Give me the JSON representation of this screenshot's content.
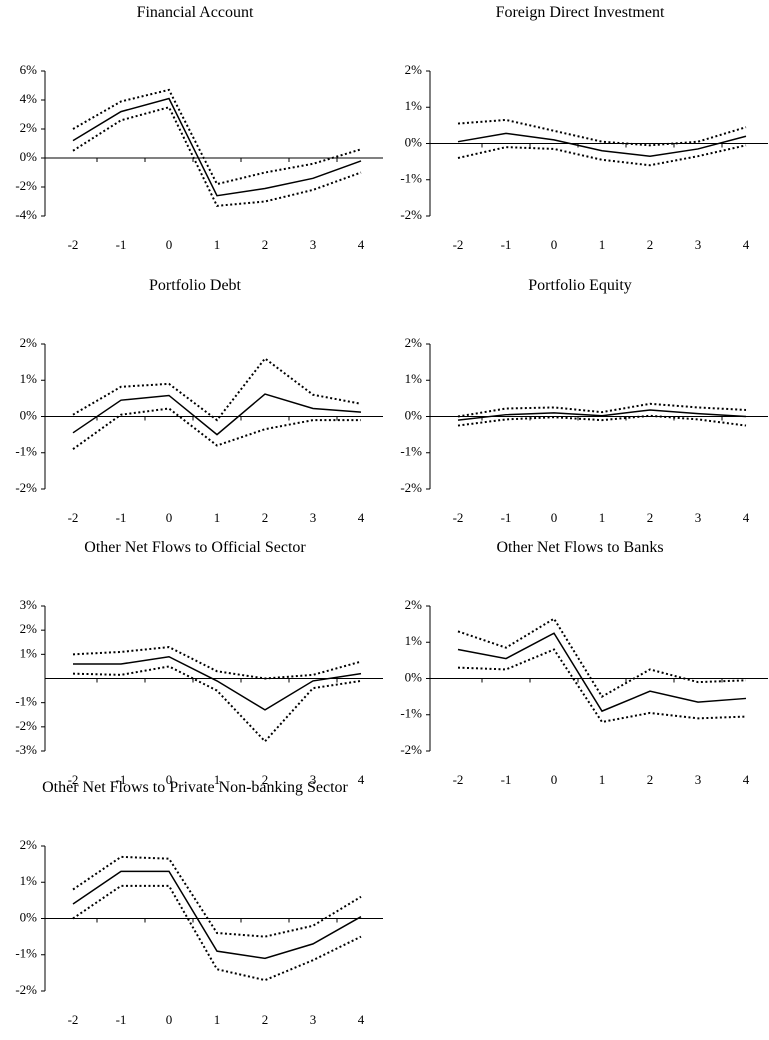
{
  "chart_data": [
    {
      "type": "line",
      "title": "Financial Account",
      "categories": [
        "-2",
        "-1",
        "0",
        "1",
        "2",
        "3",
        "4"
      ],
      "ylim": [
        -4,
        6
      ],
      "yticks": [
        {
          "value": -4,
          "label": "-4%"
        },
        {
          "value": -2,
          "label": "-2%"
        },
        {
          "value": 0,
          "label": "0%"
        },
        {
          "value": 2,
          "label": "2%"
        },
        {
          "value": 4,
          "label": "4%"
        },
        {
          "value": 6,
          "label": "6%"
        }
      ],
      "series": [
        {
          "color": "#000000",
          "line_style": "solid",
          "values": [
            1.2,
            3.2,
            4.1,
            -2.6,
            -2.1,
            -1.4,
            -0.2
          ]
        },
        {
          "color": "#000000",
          "line_style": "dotted",
          "values": [
            2.0,
            3.9,
            4.7,
            -1.8,
            -1.0,
            -0.4,
            0.6
          ]
        },
        {
          "color": "#000000",
          "line_style": "dotted",
          "values": [
            0.5,
            2.6,
            3.5,
            -3.3,
            -3.0,
            -2.2,
            -1.0
          ]
        }
      ]
    },
    {
      "type": "line",
      "title": "Foreign Direct Investment",
      "categories": [
        "-2",
        "-1",
        "0",
        "1",
        "2",
        "3",
        "4"
      ],
      "ylim": [
        -2,
        2
      ],
      "yticks": [
        {
          "value": -2,
          "label": "-2%"
        },
        {
          "value": -1,
          "label": "-1%"
        },
        {
          "value": 0,
          "label": "0%"
        },
        {
          "value": 1,
          "label": "1%"
        },
        {
          "value": 2,
          "label": "2%"
        }
      ],
      "series": [
        {
          "color": "#000000",
          "line_style": "solid",
          "values": [
            0.05,
            0.28,
            0.1,
            -0.2,
            -0.35,
            -0.15,
            0.2
          ]
        },
        {
          "color": "#000000",
          "line_style": "dotted",
          "values": [
            0.55,
            0.65,
            0.35,
            0.05,
            -0.05,
            0.05,
            0.45
          ]
        },
        {
          "color": "#000000",
          "line_style": "dotted",
          "values": [
            -0.4,
            -0.1,
            -0.15,
            -0.45,
            -0.6,
            -0.35,
            -0.05
          ]
        }
      ]
    },
    {
      "type": "line",
      "title": "Portfolio Debt",
      "categories": [
        "-2",
        "-1",
        "0",
        "1",
        "2",
        "3",
        "4"
      ],
      "ylim": [
        -2,
        2
      ],
      "yticks": [
        {
          "value": -2,
          "label": "-2%"
        },
        {
          "value": -1,
          "label": "-1%"
        },
        {
          "value": 0,
          "label": "0%"
        },
        {
          "value": 1,
          "label": "1%"
        },
        {
          "value": 2,
          "label": "2%"
        }
      ],
      "series": [
        {
          "color": "#000000",
          "line_style": "solid",
          "values": [
            -0.45,
            0.45,
            0.58,
            -0.5,
            0.62,
            0.22,
            0.12
          ]
        },
        {
          "color": "#000000",
          "line_style": "dotted",
          "values": [
            0.05,
            0.82,
            0.9,
            -0.1,
            1.6,
            0.6,
            0.35
          ]
        },
        {
          "color": "#000000",
          "line_style": "dotted",
          "values": [
            -0.9,
            0.05,
            0.22,
            -0.8,
            -0.35,
            -0.1,
            -0.1
          ]
        }
      ]
    },
    {
      "type": "line",
      "title": "Portfolio Equity",
      "categories": [
        "-2",
        "-1",
        "0",
        "1",
        "2",
        "3",
        "4"
      ],
      "ylim": [
        -2,
        2
      ],
      "yticks": [
        {
          "value": -2,
          "label": "-2%"
        },
        {
          "value": -1,
          "label": "-1%"
        },
        {
          "value": 0,
          "label": "0%"
        },
        {
          "value": 1,
          "label": "1%"
        },
        {
          "value": 2,
          "label": "2%"
        }
      ],
      "series": [
        {
          "color": "#000000",
          "line_style": "solid",
          "values": [
            -0.1,
            0.05,
            0.1,
            0.02,
            0.18,
            0.08,
            0.0
          ]
        },
        {
          "color": "#000000",
          "line_style": "dotted",
          "values": [
            0.0,
            0.22,
            0.25,
            0.12,
            0.35,
            0.25,
            0.18
          ]
        },
        {
          "color": "#000000",
          "line_style": "dotted",
          "values": [
            -0.25,
            -0.08,
            -0.02,
            -0.1,
            0.02,
            -0.08,
            -0.25
          ]
        }
      ]
    },
    {
      "type": "line",
      "title": "Other Net Flows to Official Sector",
      "categories": [
        "-2",
        "-1",
        "0",
        "1",
        "2",
        "3",
        "4"
      ],
      "ylim": [
        -3,
        3
      ],
      "yticks": [
        {
          "value": -3,
          "label": "-3%"
        },
        {
          "value": -2,
          "label": "-2%"
        },
        {
          "value": -1,
          "label": "-1%"
        },
        {
          "value": 1,
          "label": "1%"
        },
        {
          "value": 2,
          "label": "2%"
        },
        {
          "value": 3,
          "label": "3%"
        }
      ],
      "series": [
        {
          "color": "#000000",
          "line_style": "solid",
          "values": [
            0.6,
            0.6,
            0.9,
            -0.1,
            -1.3,
            -0.1,
            0.2
          ]
        },
        {
          "color": "#000000",
          "line_style": "dotted",
          "values": [
            1.0,
            1.1,
            1.3,
            0.3,
            0.0,
            0.15,
            0.7
          ]
        },
        {
          "color": "#000000",
          "line_style": "dotted",
          "values": [
            0.2,
            0.15,
            0.5,
            -0.5,
            -2.6,
            -0.4,
            -0.1
          ]
        }
      ]
    },
    {
      "type": "line",
      "title": "Other Net Flows to Banks",
      "categories": [
        "-2",
        "-1",
        "0",
        "1",
        "2",
        "3",
        "4"
      ],
      "ylim": [
        -2,
        2
      ],
      "yticks": [
        {
          "value": -2,
          "label": "-2%"
        },
        {
          "value": -1,
          "label": "-1%"
        },
        {
          "value": 0,
          "label": "0%"
        },
        {
          "value": 1,
          "label": "1%"
        },
        {
          "value": 2,
          "label": "2%"
        }
      ],
      "series": [
        {
          "color": "#000000",
          "line_style": "solid",
          "values": [
            0.8,
            0.55,
            1.25,
            -0.9,
            -0.35,
            -0.65,
            -0.55
          ]
        },
        {
          "color": "#000000",
          "line_style": "dotted",
          "values": [
            1.3,
            0.85,
            1.65,
            -0.5,
            0.25,
            -0.1,
            -0.05
          ]
        },
        {
          "color": "#000000",
          "line_style": "dotted",
          "values": [
            0.3,
            0.25,
            0.8,
            -1.2,
            -0.95,
            -1.1,
            -1.05
          ]
        }
      ]
    },
    {
      "type": "line",
      "title": "Other Net Flows to Private Non-banking Sector",
      "categories": [
        "-2",
        "-1",
        "0",
        "1",
        "2",
        "3",
        "4"
      ],
      "ylim": [
        -2,
        2
      ],
      "yticks": [
        {
          "value": -2,
          "label": "-2%"
        },
        {
          "value": -1,
          "label": "-1%"
        },
        {
          "value": 0,
          "label": "0%"
        },
        {
          "value": 1,
          "label": "1%"
        },
        {
          "value": 2,
          "label": "2%"
        }
      ],
      "series": [
        {
          "color": "#000000",
          "line_style": "solid",
          "values": [
            0.4,
            1.3,
            1.3,
            -0.9,
            -1.1,
            -0.7,
            0.05
          ]
        },
        {
          "color": "#000000",
          "line_style": "dotted",
          "values": [
            0.8,
            1.7,
            1.65,
            -0.4,
            -0.5,
            -0.2,
            0.6
          ]
        },
        {
          "color": "#000000",
          "line_style": "dotted",
          "values": [
            0.0,
            0.9,
            0.9,
            -1.4,
            -1.7,
            -1.15,
            -0.5
          ]
        }
      ]
    }
  ]
}
